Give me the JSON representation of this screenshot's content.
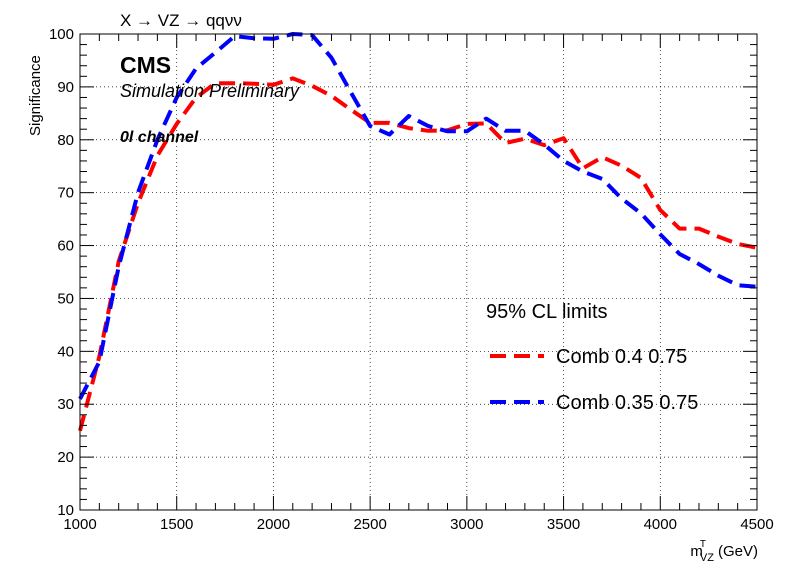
{
  "chart_data": {
    "type": "line",
    "title": "X → VZ → qqνν",
    "experiment_label": "CMS",
    "sim_label": "Simulation Preliminary",
    "channel_label": "0l channel",
    "xlabel_main": "m",
    "xlabel_sup": "T",
    "xlabel_sub": "VZ",
    "xlabel_unit": "(GeV)",
    "ylabel": "Significance",
    "xlim": [
      1000,
      4500
    ],
    "ylim": [
      10,
      100
    ],
    "x_ticks": [
      1000,
      1500,
      2000,
      2500,
      3000,
      3500,
      4000,
      4500
    ],
    "y_ticks": [
      10,
      20,
      30,
      40,
      50,
      60,
      70,
      80,
      90,
      100
    ],
    "grid": true,
    "legend": {
      "title": "95% CL limits",
      "placement": "right-middle"
    },
    "series": [
      {
        "name": "Comb 0.4 0.75",
        "color": "#ff0000",
        "x": [
          1000,
          1100,
          1200,
          1300,
          1400,
          1500,
          1600,
          1700,
          1800,
          1900,
          2000,
          2100,
          2200,
          2300,
          2400,
          2500,
          2600,
          2700,
          2800,
          2900,
          3000,
          3100,
          3200,
          3300,
          3400,
          3500,
          3600,
          3700,
          3800,
          3900,
          4000,
          4100,
          4200,
          4300,
          4400,
          4500
        ],
        "values": [
          25,
          39,
          57,
          68,
          77,
          83,
          88,
          90.7,
          90.7,
          90.6,
          90.4,
          91.6,
          90.2,
          88.3,
          85.7,
          83.2,
          83.2,
          82.2,
          81.7,
          81.8,
          83,
          83.1,
          79.4,
          80.2,
          79,
          80.3,
          74.6,
          76.7,
          75.1,
          72.8,
          66.7,
          63.2,
          63.2,
          61.7,
          60.3,
          59.6
        ]
      },
      {
        "name": "Comb 0.35 0.75",
        "color": "#0000ff",
        "x": [
          1000,
          1100,
          1200,
          1300,
          1400,
          1500,
          1600,
          1700,
          1800,
          1900,
          2000,
          2100,
          2200,
          2300,
          2400,
          2500,
          2600,
          2700,
          2800,
          2900,
          3000,
          3100,
          3200,
          3300,
          3400,
          3500,
          3600,
          3700,
          3800,
          3900,
          4000,
          4100,
          4200,
          4300,
          4400,
          4500
        ],
        "values": [
          31,
          38,
          56,
          70,
          80,
          88,
          93.5,
          96.5,
          99.6,
          99.2,
          99.1,
          100,
          99.8,
          95.5,
          89,
          82.6,
          81,
          84.5,
          82.6,
          81.6,
          81.6,
          84,
          81.7,
          81.7,
          79.1,
          76,
          74,
          72.6,
          68.9,
          66.1,
          62.1,
          58.4,
          56.5,
          54.3,
          52.5,
          52.2
        ]
      }
    ]
  }
}
